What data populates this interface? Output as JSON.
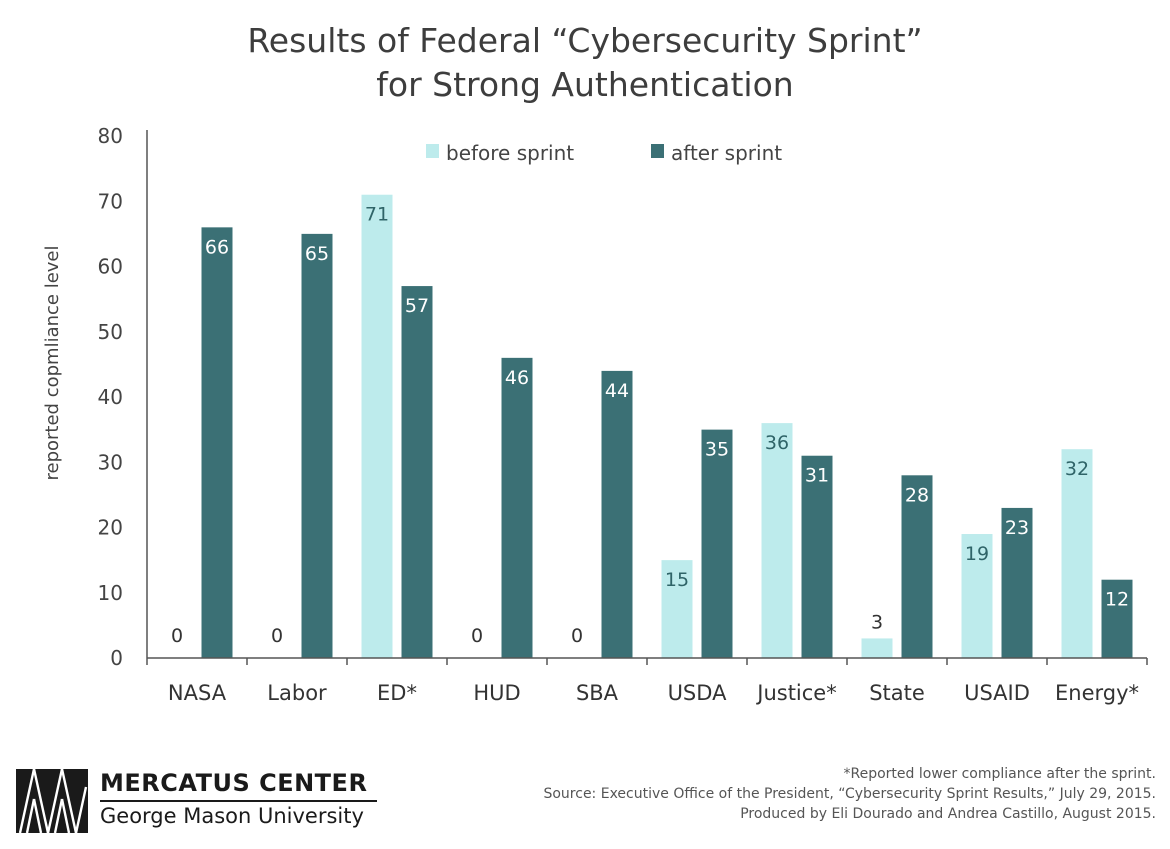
{
  "chart_data": {
    "type": "bar",
    "title": [
      "Results of Federal “Cybersecurity Sprint”",
      "for Strong Authentication"
    ],
    "xlabel": "",
    "ylabel": "reported copmliance level",
    "ylim": [
      0,
      80
    ],
    "yticks": [
      0,
      10,
      20,
      30,
      40,
      50,
      60,
      70,
      80
    ],
    "categories": [
      "NASA",
      "Labor",
      "ED*",
      "HUD",
      "SBA",
      "USDA",
      "Justice*",
      "State",
      "USAID",
      "Energy*"
    ],
    "series": [
      {
        "name": "before sprint",
        "color": "#bdebec",
        "values": [
          0,
          0,
          71,
          0,
          0,
          15,
          36,
          3,
          19,
          32
        ]
      },
      {
        "name": "after sprint",
        "color": "#3b7075",
        "values": [
          66,
          65,
          57,
          46,
          44,
          35,
          31,
          28,
          23,
          12
        ]
      }
    ],
    "legend_position": "top-center",
    "grid": false
  },
  "branding": {
    "org_name": "MERCATUS CENTER",
    "org_subtitle": "George Mason University"
  },
  "notes": [
    "*Reported lower compliance after the sprint.",
    "Source: Executive Office of the President, “Cybersecurity Sprint Results,” July 29, 2015.",
    "Produced by Eli Dourado and Andrea Castillo, August 2015."
  ]
}
